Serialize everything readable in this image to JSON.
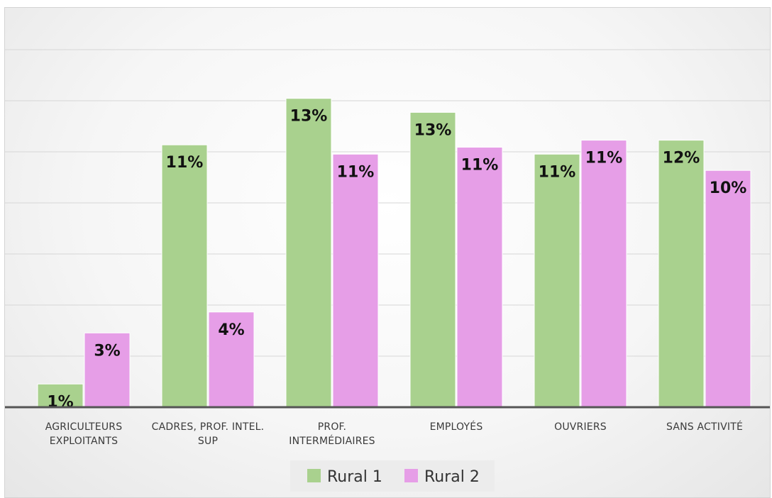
{
  "chart_data": {
    "type": "bar",
    "categories": [
      "AGRICULTEURS\nEXPLOITANTS",
      "CADRES, PROF. INTEL.\nSUP",
      "PROF.\nINTERMÉDIAIRES",
      "EMPLOYÉS",
      "OUVRIERS",
      "SANS ACTIVITÉ"
    ],
    "series": [
      {
        "name": "Rural 1",
        "color": "#a9d18e",
        "values": [
          1,
          11.3,
          13.3,
          12.7,
          10.9,
          11.5
        ],
        "labels": [
          "1%",
          "11%",
          "13%",
          "13%",
          "11%",
          "12%"
        ]
      },
      {
        "name": "Rural 2",
        "color": "#e69ee7",
        "values": [
          3.2,
          4.1,
          10.9,
          11.2,
          11.5,
          10.2
        ],
        "labels": [
          "3%",
          "4%",
          "11%",
          "11%",
          "11%",
          "10%"
        ]
      }
    ],
    "ylim": [
      0,
      16.5
    ],
    "grid": true,
    "legend": "bottom"
  }
}
